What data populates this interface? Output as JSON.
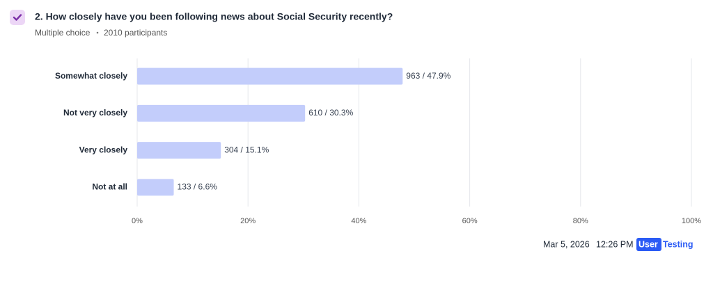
{
  "chart_data": {
    "type": "barh",
    "title": "2. How closely have you been following news about Social Security recently?",
    "meta": [
      "Multiple choice",
      "2010 participants"
    ],
    "categories": [
      "Somewhat closely",
      "Not very closely",
      "Very closely",
      "Not at all"
    ],
    "values": [
      47.9,
      30.3,
      15.1,
      6.6
    ],
    "value_labels": [
      "963 / 47.9%",
      "610 / 30.3%",
      "304 / 15.1%",
      "133 / 6.6%"
    ],
    "color": "#c3cdfb",
    "xlim": [
      0,
      100
    ],
    "xticks": [
      {
        "value": 0,
        "label": "0%"
      },
      {
        "value": 20,
        "label": "20%"
      },
      {
        "value": 40,
        "label": "40%"
      },
      {
        "value": 60,
        "label": "60%"
      },
      {
        "value": 80,
        "label": "80%"
      },
      {
        "value": 100,
        "label": "100%"
      }
    ],
    "grid": true,
    "footer": {
      "date": "Mar 5, 2026",
      "time": "12:26 PM",
      "brand": [
        "User",
        "Testing"
      ]
    }
  }
}
